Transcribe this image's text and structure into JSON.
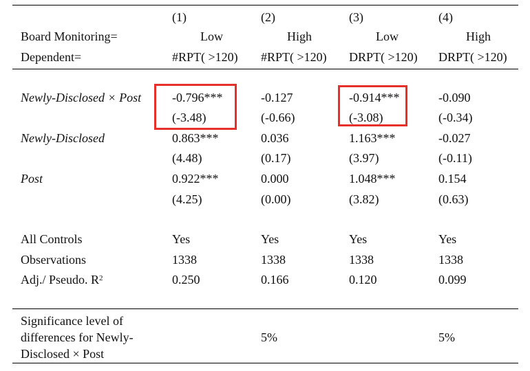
{
  "header": {
    "col_numbers": [
      "(1)",
      "(2)",
      "(3)",
      "(4)"
    ],
    "board_label": "Board Monitoring=",
    "board_values": [
      "Low",
      "High",
      "Low",
      "High"
    ],
    "dependent_label": "Dependent=",
    "dependent_values": [
      "#RPT( >120)",
      "#RPT( >120)",
      "DRPT( >120)",
      "DRPT( >120)"
    ]
  },
  "rows": [
    {
      "label": "Newly-Disclosed × Post",
      "coef": [
        "-0.796***",
        "-0.127",
        "-0.914***",
        "-0.090"
      ],
      "t": [
        "(-3.48)",
        "(-0.66)",
        "(-3.08)",
        "(-0.34)"
      ]
    },
    {
      "label": "Newly-Disclosed",
      "coef": [
        "0.863***",
        "0.036",
        "1.163***",
        "-0.027"
      ],
      "t": [
        "(4.48)",
        "(0.17)",
        "(3.97)",
        "(-0.11)"
      ]
    },
    {
      "label": "Post",
      "coef": [
        "0.922***",
        "0.000",
        "1.048***",
        "0.154"
      ],
      "t": [
        "(4.25)",
        "(0.00)",
        "(3.82)",
        "(0.63)"
      ]
    }
  ],
  "stats": [
    {
      "label": "All Controls",
      "values": [
        "Yes",
        "Yes",
        "Yes",
        "Yes"
      ]
    },
    {
      "label": "Observations",
      "values": [
        "1338",
        "1338",
        "1338",
        "1338"
      ]
    },
    {
      "label_main": "Adj./ Pseudo. R",
      "label_sup": "2",
      "values": [
        "0.250",
        "0.166",
        "0.120",
        "0.099"
      ]
    }
  ],
  "significance": {
    "label_lines": [
      "Significance level of",
      "differences for Newly-",
      "Disclosed × Post"
    ],
    "values": [
      "5%",
      "5%"
    ]
  },
  "highlight_color": "#e8302a"
}
